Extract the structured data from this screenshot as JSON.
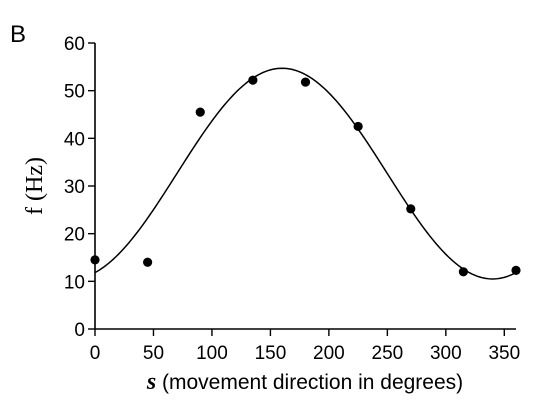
{
  "panel_label": "B",
  "chart_data": {
    "type": "scatter",
    "xlabel_var": "s",
    "xlabel_rest": " (movement direction in degrees)",
    "ylabel": "f (Hz)",
    "xlim": [
      0,
      360
    ],
    "ylim": [
      0,
      60
    ],
    "x_ticks": [
      0,
      50,
      100,
      150,
      200,
      250,
      300,
      350
    ],
    "y_ticks": [
      0,
      10,
      20,
      30,
      40,
      50,
      60
    ],
    "grid": false,
    "series": [
      {
        "kind": "points",
        "x": [
          0,
          45,
          90,
          135,
          180,
          225,
          270,
          315,
          360
        ],
        "y": [
          14.5,
          14.0,
          45.5,
          52.2,
          51.8,
          42.5,
          25.2,
          12.0,
          12.3
        ]
      },
      {
        "kind": "fit-curve",
        "baseline": 32.6,
        "amplitude": 22.1,
        "preferred_direction": 160
      }
    ]
  }
}
